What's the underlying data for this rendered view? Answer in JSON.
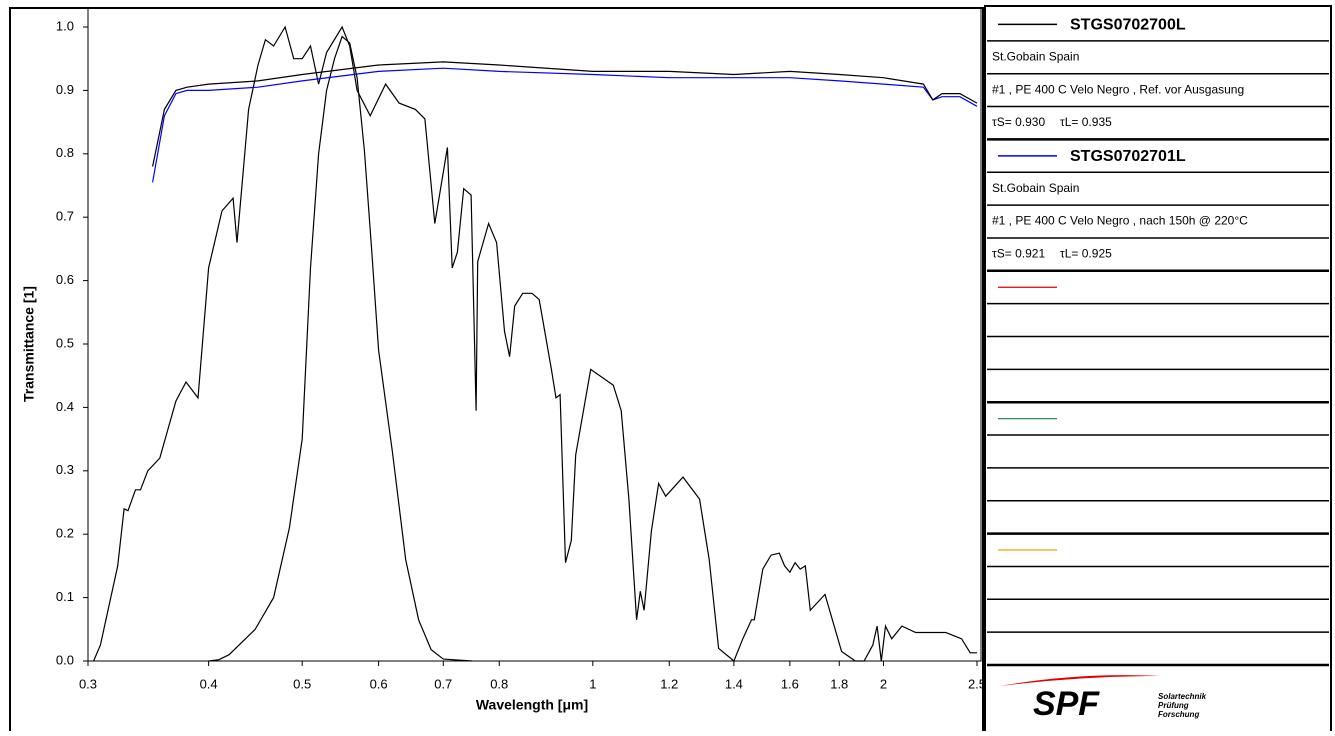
{
  "chart_data": {
    "type": "line",
    "log_x": true,
    "x_label": "Wavelength [μm]",
    "y_label": "Transmittance [1]",
    "xlim": [
      0.3,
      2.5
    ],
    "ylim": [
      0,
      1
    ],
    "xticks": [
      0.3,
      0.4,
      0.5,
      0.6,
      0.7,
      0.8,
      1,
      1.2,
      1.4,
      1.6,
      1.8,
      2,
      2.5
    ],
    "yticks": [
      {
        "value": 0,
        "label": "0.0"
      },
      0.1,
      0.2,
      0.3,
      0.4,
      0.5,
      0.6,
      0.7,
      0.8,
      0.9,
      {
        "value": 1,
        "label": "1.0"
      }
    ],
    "series": [
      {
        "name": "STGS0702700L",
        "color": "#000000",
        "company": "St.Gobain Spain",
        "description": "#1 , PE 400 C Velo Negro , Ref. vor Ausgasung",
        "tau_s": "τS= 0.930",
        "tau_l": "τL= 0.935",
        "x": [
          0.35,
          0.36,
          0.37,
          0.38,
          0.4,
          0.45,
          0.5,
          0.6,
          0.7,
          0.8,
          1.0,
          1.2,
          1.4,
          1.6,
          1.8,
          2.0,
          2.2,
          2.25,
          2.3,
          2.4,
          2.5
        ],
        "values": [
          0.78,
          0.87,
          0.9,
          0.905,
          0.91,
          0.915,
          0.925,
          0.94,
          0.945,
          0.94,
          0.93,
          0.93,
          0.925,
          0.93,
          0.925,
          0.92,
          0.91,
          0.885,
          0.895,
          0.895,
          0.88
        ]
      },
      {
        "name": "STGS0702701L",
        "color": "#0000ff",
        "company": "St.Gobain Spain",
        "description": "#1 , PE 400 C Velo Negro , nach 150h @ 220°C",
        "tau_s": "τS= 0.921",
        "tau_l": "τL= 0.925",
        "x": [
          0.35,
          0.36,
          0.37,
          0.38,
          0.4,
          0.45,
          0.5,
          0.6,
          0.7,
          0.8,
          1.0,
          1.2,
          1.4,
          1.6,
          1.8,
          2.0,
          2.2,
          2.25,
          2.3,
          2.4,
          2.5
        ],
        "values": [
          0.755,
          0.86,
          0.895,
          0.9,
          0.9,
          0.905,
          0.915,
          0.93,
          0.935,
          0.93,
          0.925,
          0.92,
          0.92,
          0.92,
          0.915,
          0.91,
          0.905,
          0.885,
          0.89,
          0.89,
          0.875
        ]
      },
      {
        "color": "#000000",
        "x": [
          0.304,
          0.309,
          0.322,
          0.327,
          0.33,
          0.336,
          0.34,
          0.346,
          0.356,
          0.37,
          0.379,
          0.39,
          0.4,
          0.413,
          0.424,
          0.428,
          0.44,
          0.45,
          0.458,
          0.467,
          0.48,
          0.49,
          0.5,
          0.51,
          0.52,
          0.53,
          0.55,
          0.56,
          0.57,
          0.588,
          0.61,
          0.63,
          0.655,
          0.67,
          0.686,
          0.707,
          0.715,
          0.724,
          0.735,
          0.748,
          0.757,
          0.76,
          0.78,
          0.795,
          0.81,
          0.82,
          0.83,
          0.846,
          0.865,
          0.88,
          0.906,
          0.916,
          0.925,
          0.937,
          0.95,
          0.96,
          0.995,
          1.05,
          1.07,
          1.09,
          1.11,
          1.12,
          1.13,
          1.15,
          1.17,
          1.19,
          1.24,
          1.29,
          1.32,
          1.35,
          1.4,
          1.43,
          1.46,
          1.47,
          1.5,
          1.53,
          1.56,
          1.58,
          1.6,
          1.62,
          1.64,
          1.66,
          1.68,
          1.74,
          1.81,
          1.87,
          1.91,
          1.95,
          1.97,
          1.99,
          2.01,
          2.04,
          2.09,
          2.16,
          2.32,
          2.41,
          2.46,
          2.5
        ],
        "values": [
          0,
          0.025,
          0.15,
          0.24,
          0.237,
          0.27,
          0.27,
          0.3,
          0.32,
          0.41,
          0.44,
          0.415,
          0.62,
          0.71,
          0.73,
          0.66,
          0.87,
          0.94,
          0.98,
          0.97,
          1.0,
          0.95,
          0.95,
          0.97,
          0.91,
          0.96,
          1.0,
          0.97,
          0.9,
          0.86,
          0.91,
          0.88,
          0.87,
          0.855,
          0.69,
          0.81,
          0.62,
          0.645,
          0.745,
          0.735,
          0.395,
          0.63,
          0.69,
          0.66,
          0.52,
          0.48,
          0.56,
          0.58,
          0.58,
          0.57,
          0.46,
          0.415,
          0.42,
          0.155,
          0.19,
          0.325,
          0.46,
          0.435,
          0.395,
          0.255,
          0.065,
          0.11,
          0.08,
          0.205,
          0.28,
          0.26,
          0.29,
          0.255,
          0.16,
          0.02,
          0,
          0.035,
          0.065,
          0.065,
          0.145,
          0.167,
          0.17,
          0.15,
          0.14,
          0.155,
          0.145,
          0.15,
          0.08,
          0.105,
          0.015,
          0,
          0,
          0.025,
          0.055,
          0,
          0.055,
          0.035,
          0.055,
          0.045,
          0.045,
          0.035,
          0.013,
          0.013
        ]
      },
      {
        "color": "#000000",
        "x": [
          0.4,
          0.41,
          0.42,
          0.447,
          0.467,
          0.485,
          0.5,
          0.51,
          0.52,
          0.53,
          0.54,
          0.55,
          0.56,
          0.57,
          0.58,
          0.59,
          0.6,
          0.62,
          0.64,
          0.66,
          0.68,
          0.7,
          0.75
        ],
        "values": [
          0,
          0.002,
          0.01,
          0.05,
          0.1,
          0.21,
          0.35,
          0.62,
          0.8,
          0.9,
          0.95,
          0.985,
          0.975,
          0.92,
          0.805,
          0.65,
          0.49,
          0.33,
          0.16,
          0.065,
          0.018,
          0.003,
          0
        ]
      }
    ],
    "empty_slots": [
      {
        "color": "#e00000"
      },
      {
        "color": "#2e8b57"
      },
      {
        "color": "#f0a000"
      }
    ],
    "logo": {
      "text": "SPF",
      "lines": [
        "Solartechnik",
        "Prüfung",
        "Forschung"
      ]
    }
  }
}
